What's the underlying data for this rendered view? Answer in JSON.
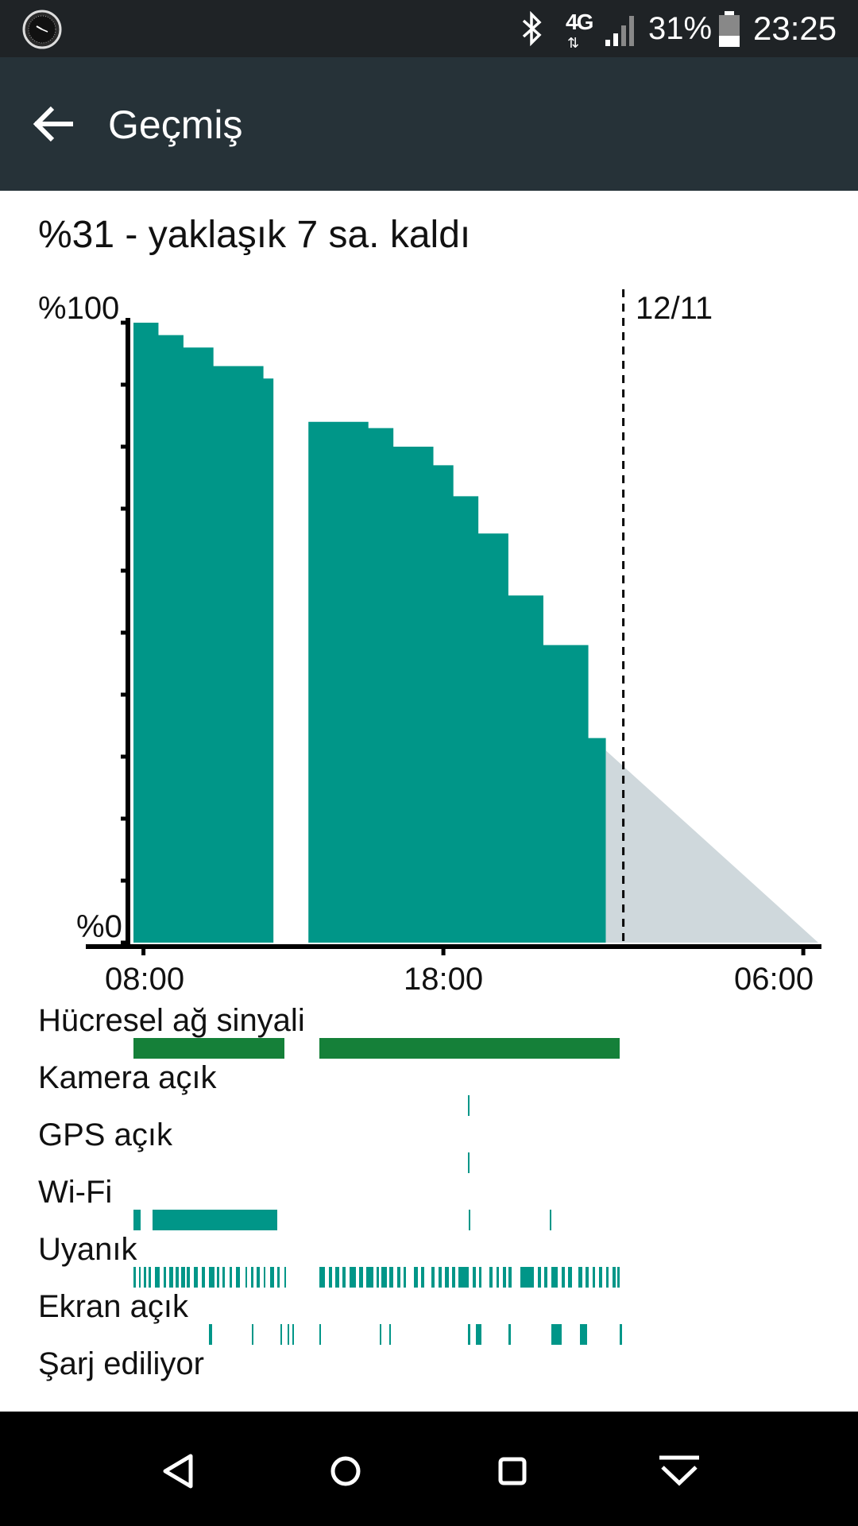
{
  "status_bar": {
    "time": "23:25",
    "battery_percent": "31%",
    "network_type": "4G",
    "network_arrows": "⇅",
    "icons": [
      "watch-face-icon",
      "bluetooth-icon",
      "signal-icon",
      "battery-icon"
    ]
  },
  "app_bar": {
    "title": "Geçmiş"
  },
  "summary": "%31 - yaklaşık 7 sa. kaldı",
  "chart": {
    "y_top_label": "%100",
    "y_bottom_label": "%0",
    "x_labels": [
      "08:00",
      "18:00",
      "06:00"
    ],
    "date_marker": "12/11",
    "colors": {
      "fill": "#009688",
      "prediction": "#CFD8DC",
      "signal": "#158039",
      "axis": "#000000"
    }
  },
  "chart_data": {
    "type": "area",
    "title": "",
    "xlabel": "",
    "ylabel": "",
    "ylim": [
      0,
      100
    ],
    "x_ticks": [
      "08:00",
      "18:00",
      "06:00"
    ],
    "y_ticks": [
      "%0",
      "%100"
    ],
    "date_marker": "12/11",
    "series": [
      {
        "points": [
          [
            "07:40",
            100
          ],
          [
            "08:30",
            98
          ],
          [
            "09:20",
            96
          ],
          [
            "10:20",
            93
          ],
          [
            "12:00",
            91
          ],
          [
            "12:20",
            89
          ]
        ]
      },
      {
        "points": [
          [
            "13:30",
            84
          ],
          [
            "15:30",
            83
          ],
          [
            "16:20",
            80
          ],
          [
            "17:40",
            77
          ],
          [
            "18:20",
            72
          ],
          [
            "19:10",
            66
          ],
          [
            "20:10",
            56
          ],
          [
            "21:20",
            48
          ],
          [
            "22:50",
            33
          ],
          [
            "23:25",
            31
          ]
        ]
      },
      {
        "points": [
          [
            "23:25",
            31
          ],
          [
            "06:30",
            0
          ]
        ]
      }
    ]
  },
  "activity": {
    "rows": [
      {
        "label": "Hücresel ağ sinyali",
        "color": "#158039",
        "segments": [
          [
            0.0,
            0.22
          ],
          [
            0.271,
            0.71
          ]
        ]
      },
      {
        "label": "Kamera açık",
        "color": "#009688",
        "segments": [
          [
            0.488,
            0.491
          ]
        ]
      },
      {
        "label": "GPS açık",
        "color": "#009688",
        "segments": [
          [
            0.488,
            0.491
          ]
        ]
      },
      {
        "label": "Wi-Fi",
        "color": "#009688",
        "segments": [
          [
            0.0,
            0.011
          ],
          [
            0.028,
            0.21
          ],
          [
            0.49,
            0.492
          ],
          [
            0.608,
            0.61
          ]
        ]
      },
      {
        "label": "Uyanık",
        "color": "#009688",
        "segments": [
          [
            0.0,
            0.004
          ],
          [
            0.008,
            0.011
          ],
          [
            0.015,
            0.018
          ],
          [
            0.022,
            0.025
          ],
          [
            0.031,
            0.038
          ],
          [
            0.044,
            0.048
          ],
          [
            0.052,
            0.058
          ],
          [
            0.062,
            0.066
          ],
          [
            0.07,
            0.075
          ],
          [
            0.078,
            0.082
          ],
          [
            0.088,
            0.094
          ],
          [
            0.1,
            0.104
          ],
          [
            0.11,
            0.118
          ],
          [
            0.122,
            0.125
          ],
          [
            0.13,
            0.134
          ],
          [
            0.14,
            0.144
          ],
          [
            0.15,
            0.156
          ],
          [
            0.163,
            0.166
          ],
          [
            0.172,
            0.175
          ],
          [
            0.18,
            0.184
          ],
          [
            0.19,
            0.193
          ],
          [
            0.2,
            0.205
          ],
          [
            0.21,
            0.214
          ],
          [
            0.22,
            0.222
          ],
          [
            0.271,
            0.28
          ],
          [
            0.285,
            0.29
          ],
          [
            0.295,
            0.3
          ],
          [
            0.305,
            0.31
          ],
          [
            0.315,
            0.325
          ],
          [
            0.33,
            0.335
          ],
          [
            0.34,
            0.35
          ],
          [
            0.355,
            0.358
          ],
          [
            0.362,
            0.37
          ],
          [
            0.374,
            0.379
          ],
          [
            0.385,
            0.39
          ],
          [
            0.395,
            0.398
          ],
          [
            0.41,
            0.415
          ],
          [
            0.42,
            0.425
          ],
          [
            0.435,
            0.44
          ],
          [
            0.445,
            0.45
          ],
          [
            0.455,
            0.46
          ],
          [
            0.465,
            0.47
          ],
          [
            0.475,
            0.49
          ],
          [
            0.495,
            0.5
          ],
          [
            0.505,
            0.508
          ],
          [
            0.52,
            0.524
          ],
          [
            0.53,
            0.534
          ],
          [
            0.54,
            0.544
          ],
          [
            0.548,
            0.552
          ],
          [
            0.565,
            0.585
          ],
          [
            0.59,
            0.595
          ],
          [
            0.6,
            0.604
          ],
          [
            0.61,
            0.62
          ],
          [
            0.625,
            0.63
          ],
          [
            0.635,
            0.64
          ],
          [
            0.65,
            0.655
          ],
          [
            0.66,
            0.665
          ],
          [
            0.67,
            0.674
          ],
          [
            0.68,
            0.684
          ],
          [
            0.69,
            0.694
          ],
          [
            0.7,
            0.704
          ],
          [
            0.706,
            0.71
          ]
        ]
      },
      {
        "label": "Ekran açık",
        "color": "#009688",
        "segments": [
          [
            0.11,
            0.115
          ],
          [
            0.173,
            0.175
          ],
          [
            0.215,
            0.217
          ],
          [
            0.225,
            0.227
          ],
          [
            0.232,
            0.234
          ],
          [
            0.272,
            0.274
          ],
          [
            0.36,
            0.362
          ],
          [
            0.374,
            0.376
          ],
          [
            0.488,
            0.492
          ],
          [
            0.5,
            0.508
          ],
          [
            0.548,
            0.551
          ],
          [
            0.61,
            0.625
          ],
          [
            0.652,
            0.662
          ],
          [
            0.71,
            0.713
          ]
        ]
      },
      {
        "label": "Şarj ediliyor",
        "color": "#009688",
        "segments": []
      }
    ]
  },
  "nav_bar": {
    "buttons": [
      "back-nav-icon",
      "home-nav-icon",
      "recents-nav-icon",
      "hide-nav-icon"
    ]
  }
}
